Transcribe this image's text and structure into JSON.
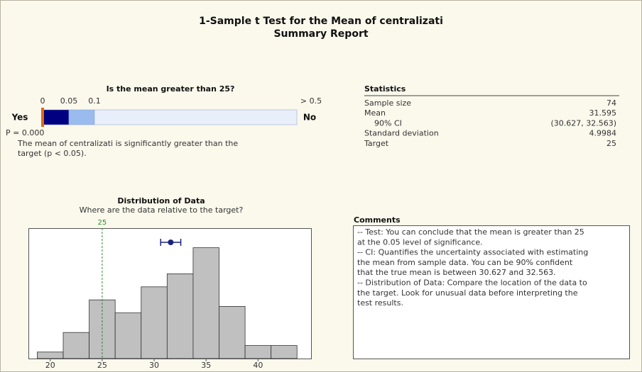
{
  "title": [
    "1-Sample t Test for the Mean of centralizati",
    "Summary Report"
  ],
  "pvalue_panel": {
    "question": "Is the mean greater than 25?",
    "ticks": [
      0,
      0.05,
      0.1,
      {
        "value": 0.5,
        "label": "> 0.5"
      }
    ],
    "yes": "Yes",
    "no": "No",
    "p_value": 0,
    "p_label": "P = 0.000",
    "message": [
      "The mean of centralizati is significantly greater than the",
      "target (p < 0.05)."
    ]
  },
  "statistics": {
    "title": "Statistics",
    "rows": [
      {
        "label": "Sample size",
        "value": 74
      },
      {
        "label": "Mean",
        "value": 31.595
      },
      {
        "label": "90% CI",
        "value": {
          "value": [
            30.627,
            32.563
          ],
          "label": "(30.627, 32.563)"
        }
      },
      {
        "label": "Standard deviation",
        "value": 4.9984
      },
      {
        "label": "Target",
        "value": 25
      }
    ]
  },
  "comments": {
    "title": "Comments",
    "lines": [
      "-- Test: You can conclude that the mean is greater than 25",
      "at the 0.05 level of significance.",
      "-- CI: Quantifies the uncertainty associated with estimating",
      "the mean from sample data. You can be 90% confident",
      "that the true mean is between 30.627 and 32.563.",
      "-- Distribution of Data: Compare the location of the data to",
      "the target. Look for unusual data before interpreting the",
      "test results."
    ]
  },
  "chart_data": {
    "type": "histogram",
    "title": "Distribution of Data",
    "subtitle": "Where are the data relative to the target?",
    "bins": [
      18.75,
      21.25,
      23.75,
      26.25,
      28.75,
      31.25,
      33.75,
      36.25,
      38.75,
      41.25,
      43.75
    ],
    "counts": [
      1,
      4,
      9,
      7,
      11,
      13,
      17,
      8,
      2,
      2
    ],
    "color": "#c0c0c0",
    "xlim": [
      17.9,
      45.1
    ],
    "xticks": [
      20,
      25,
      30,
      35,
      40
    ],
    "ylim": [
      0,
      20
    ]
  }
}
